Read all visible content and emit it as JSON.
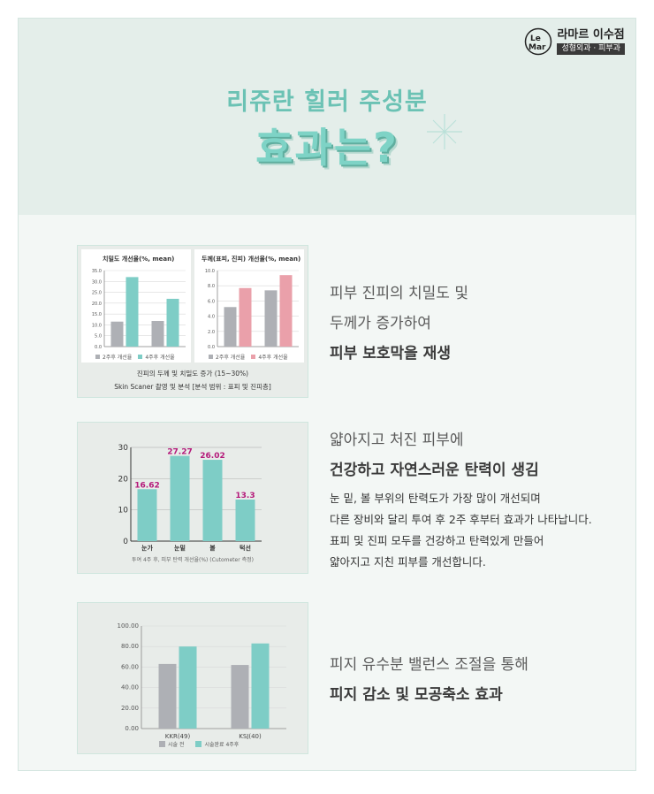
{
  "brand": {
    "logo_mark": "LeMar",
    "name": "라마르 이수점",
    "sub": "성형외과 · 피부과"
  },
  "hero": {
    "title_line1": "리쥬란 힐러 주성분",
    "title_line2": "효과는?",
    "sparkle_icon": "sparkle-icon"
  },
  "colors": {
    "teal": "#7ecdc6",
    "gray": "#aeb0b5",
    "pink": "#eaa0aa",
    "magenta": "#b4197a",
    "accent": "#6bc2b4"
  },
  "section1": {
    "line1": "피부 진피의 치밀도 및",
    "line2": "두께가 증가하여",
    "line3": "피부 보호막을 재생",
    "caption_line1": "진피의 두께 및 치밀도 증가 (15~30%)",
    "caption_line2": "Skin Scaner 촬영 및 분석 [분석 범위 : 표피 및 진피층]"
  },
  "section2": {
    "line1": "얇아지고 처진 피부에",
    "line2": "건강하고 자연스러운 탄력이 생김",
    "body1": "눈 밑, 볼 부위의 탄력도가 가장 많이 개선되며",
    "body2": "다른 장비와 달리 투여 후 2주 후부터 효과가 나타납니다.",
    "body3": "표피 및 진피 모두를 건강하고 탄력있게 만들어",
    "body4": "얇아지고 지친 피부를 개선합니다.",
    "axis_note": "투여 4주 후, 피부 탄력 개선율(%) (Cutometer 측정)"
  },
  "section3": {
    "line1": "피지 유수분 밸런스 조절을 통해",
    "line2": "피지 감소 및 모공축소 효과"
  },
  "chart_data": [
    {
      "type": "bar",
      "title": "치밀도 개선율(%, mean)",
      "categories": [
        "",
        ""
      ],
      "series": [
        {
          "name": "2주후 개선율",
          "values": [
            11.5,
            11.8
          ]
        },
        {
          "name": "4주후 개선율",
          "values": [
            32.0,
            22.0
          ]
        }
      ],
      "ylim": [
        0,
        35
      ],
      "yticks": [
        "0.0",
        "5.0",
        "10.0",
        "15.0",
        "20.0",
        "25.0",
        "30.0",
        "35.0"
      ],
      "legend": "bottom"
    },
    {
      "type": "bar",
      "title": "두께(표피, 진피) 개선율(%, mean)",
      "categories": [
        "",
        ""
      ],
      "series": [
        {
          "name": "2주후 개선율",
          "values": [
            5.2,
            7.4
          ]
        },
        {
          "name": "4주후 개선율",
          "values": [
            7.7,
            9.4
          ]
        }
      ],
      "ylim": [
        0,
        10
      ],
      "yticks": [
        "0.0",
        "2.0",
        "4.0",
        "6.0",
        "8.0",
        "10.0"
      ],
      "legend": "bottom"
    },
    {
      "type": "bar",
      "title": "",
      "categories": [
        "눈가",
        "눈밑",
        "볼",
        "턱선"
      ],
      "values": [
        16.62,
        27.27,
        26.02,
        13.3
      ],
      "data_labels": [
        "16.62",
        "27.27",
        "26.02",
        "13.3"
      ],
      "ylim": [
        0,
        30
      ],
      "yticks": [
        "0",
        "10",
        "20",
        "30"
      ]
    },
    {
      "type": "bar",
      "title": "",
      "categories": [
        "KKR(49)",
        "KSJ(40)"
      ],
      "series": [
        {
          "name": "시술 전",
          "values": [
            63,
            62
          ]
        },
        {
          "name": "시술완료 4주후",
          "values": [
            80,
            83
          ]
        }
      ],
      "ylim": [
        0,
        100
      ],
      "yticks": [
        "0.00",
        "20.00",
        "40.00",
        "60.00",
        "80.00",
        "100.00"
      ],
      "legend": "bottom"
    }
  ]
}
